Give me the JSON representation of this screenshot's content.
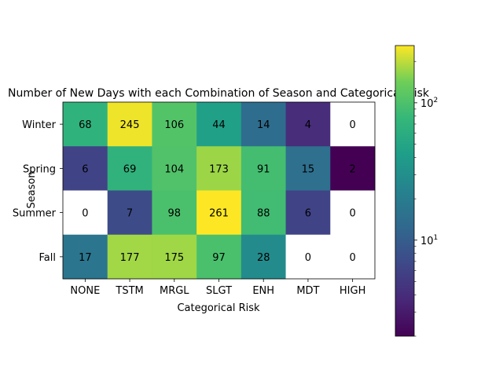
{
  "chart_data": {
    "type": "heatmap",
    "title": "Number of New Days with each Combination of Season and Categorical Risk",
    "xlabel": "Categorical Risk",
    "ylabel": "Season",
    "x_categories": [
      "NONE",
      "TSTM",
      "MRGL",
      "SLGT",
      "ENH",
      "MDT",
      "HIGH"
    ],
    "y_categories": [
      "Winter",
      "Spring",
      "Summer",
      "Fall"
    ],
    "values": [
      [
        68,
        245,
        106,
        44,
        14,
        4,
        0
      ],
      [
        6,
        69,
        104,
        173,
        91,
        15,
        2
      ],
      [
        0,
        7,
        98,
        261,
        88,
        6,
        0
      ],
      [
        17,
        177,
        175,
        97,
        28,
        0,
        0
      ]
    ],
    "cell_labels": [
      [
        "68",
        "245",
        "106",
        "44",
        "14",
        "4",
        "0"
      ],
      [
        "6",
        "69",
        "104",
        "173",
        "91",
        "15",
        "2"
      ],
      [
        "0",
        "7",
        "98",
        "261",
        "88",
        "6",
        "0"
      ],
      [
        "17",
        "177",
        "175",
        "97",
        "28",
        "0",
        "0"
      ]
    ],
    "zero_cell_color": "#ffffff",
    "colormap": "viridis",
    "color_scale": "log",
    "color_range": [
      2,
      261
    ],
    "colorbar": {
      "ticks": [
        10,
        100
      ],
      "tick_labels": [
        "10",
        "100"
      ]
    }
  }
}
